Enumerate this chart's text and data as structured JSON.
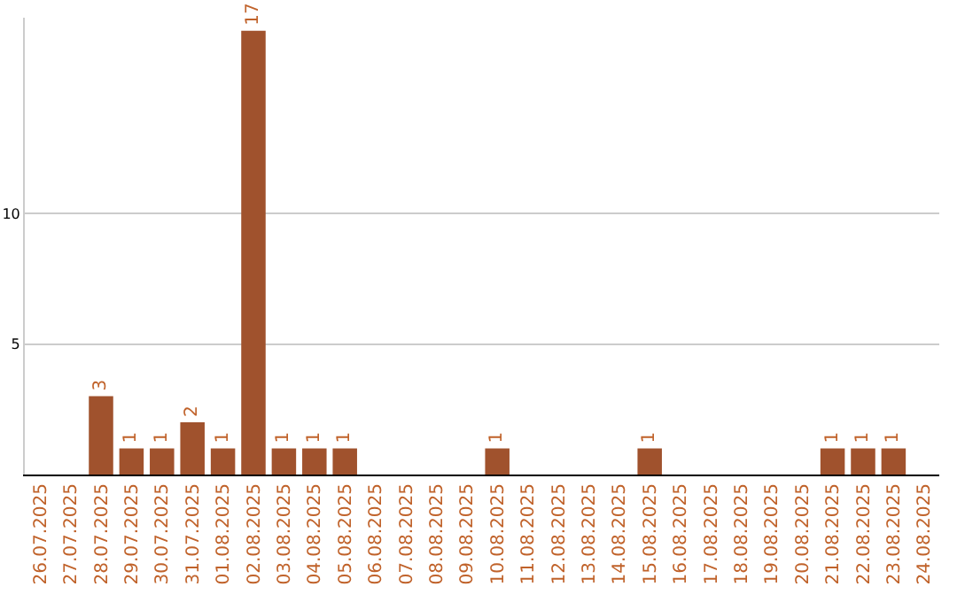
{
  "chart_data": {
    "type": "bar",
    "categories": [
      "26.07.2025",
      "27.07.2025",
      "28.07.2025",
      "29.07.2025",
      "30.07.2025",
      "31.07.2025",
      "01.08.2025",
      "02.08.2025",
      "03.08.2025",
      "04.08.2025",
      "05.08.2025",
      "06.08.2025",
      "07.08.2025",
      "08.08.2025",
      "09.08.2025",
      "10.08.2025",
      "11.08.2025",
      "12.08.2025",
      "13.08.2025",
      "14.08.2025",
      "15.08.2025",
      "16.08.2025",
      "17.08.2025",
      "18.08.2025",
      "19.08.2025",
      "20.08.2025",
      "21.08.2025",
      "22.08.2025",
      "23.08.2025",
      "24.08.2025"
    ],
    "values": [
      0,
      0,
      3,
      1,
      1,
      2,
      1,
      17,
      1,
      1,
      1,
      0,
      0,
      0,
      0,
      1,
      0,
      0,
      0,
      0,
      1,
      0,
      0,
      0,
      0,
      0,
      1,
      1,
      1,
      0
    ],
    "value_labels": [
      null,
      null,
      "3",
      "1",
      "1",
      "2",
      "1",
      "17",
      "1",
      "1",
      "1",
      null,
      null,
      null,
      null,
      "1",
      null,
      null,
      null,
      null,
      "1",
      null,
      null,
      null,
      null,
      null,
      "1",
      "1",
      "1",
      null
    ],
    "color": "#a0522d",
    "ylim": [
      0,
      17.5
    ],
    "yticks": [
      5,
      10
    ],
    "grid": "y"
  }
}
